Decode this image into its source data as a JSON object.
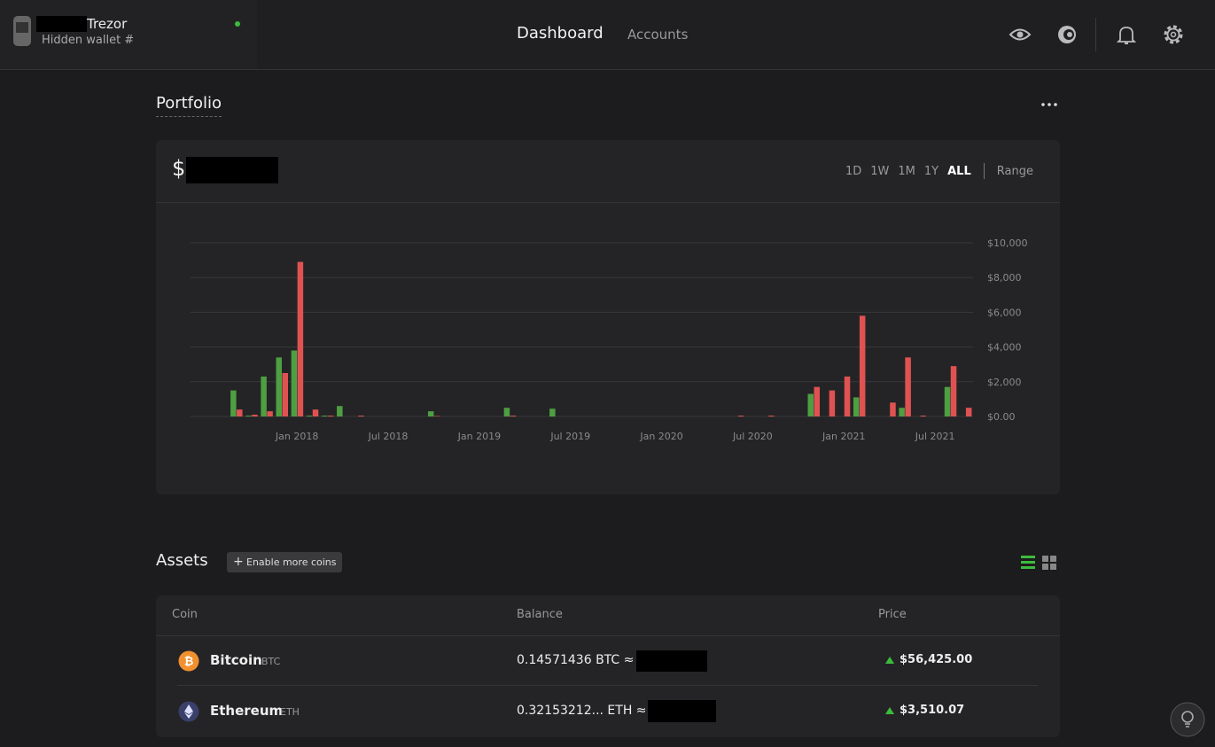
{
  "header": {
    "wallet_name": "Trezor",
    "wallet_type": "Hidden wallet #",
    "nav": [
      "Dashboard",
      "Accounts"
    ]
  },
  "portfolio": {
    "title": "Portfolio",
    "currency_symbol": "$",
    "ranges": [
      "1D",
      "1W",
      "1M",
      "1Y",
      "ALL"
    ],
    "range_custom": "Range"
  },
  "chart_data": {
    "type": "bar",
    "categories": [
      null,
      null,
      null,
      null,
      "Jan 2018",
      null,
      null,
      null,
      null,
      null,
      "Jul 2018",
      null,
      null,
      null,
      null,
      null,
      "Jan 2019",
      null,
      null,
      null,
      null,
      null,
      "Jul 2019",
      null,
      null,
      null,
      null,
      null,
      "Jan 2020",
      null,
      null,
      null,
      null,
      null,
      "Jul 2020",
      null,
      null,
      null,
      null,
      null,
      "Jan 2021",
      null,
      null,
      null,
      null,
      null,
      "Jul 2021",
      null,
      null
    ],
    "series": [
      {
        "color": "#4e9e42",
        "values": [
          1500,
          50,
          2300,
          3400,
          3800,
          50,
          50,
          600,
          0,
          0,
          0,
          0,
          0,
          300,
          0,
          0,
          0,
          0,
          500,
          0,
          0,
          450,
          0,
          0,
          0,
          0,
          0,
          0,
          0,
          0,
          0,
          0,
          0,
          0,
          0,
          0,
          0,
          0,
          1300,
          0,
          0,
          1100,
          0,
          0,
          500,
          0,
          0,
          1700,
          0
        ]
      },
      {
        "color": "#e05252",
        "values": [
          400,
          100,
          300,
          2500,
          8900,
          400,
          50,
          0,
          50,
          0,
          0,
          0,
          0,
          30,
          0,
          0,
          0,
          0,
          50,
          0,
          0,
          0,
          0,
          0,
          0,
          0,
          0,
          0,
          0,
          0,
          0,
          0,
          0,
          50,
          0,
          50,
          0,
          0,
          1700,
          1500,
          2300,
          5800,
          0,
          800,
          3400,
          50,
          0,
          2900,
          500
        ]
      }
    ],
    "ylim": [
      0,
      10000
    ],
    "yticks": [
      {
        "value": 0,
        "label": "$0.00"
      },
      {
        "value": 2000,
        "label": "$2,000"
      },
      {
        "value": 4000,
        "label": "$4,000"
      },
      {
        "value": 6000,
        "label": "$6,000"
      },
      {
        "value": 8000,
        "label": "$8,000"
      },
      {
        "value": 10000,
        "label": "$10,000"
      }
    ],
    "grid": true
  },
  "assets": {
    "title": "Assets",
    "enable_button": "Enable more coins",
    "columns": [
      "Coin",
      "Balance",
      "Price"
    ],
    "rows": [
      {
        "name": "Bitcoin",
        "symbol": "BTC",
        "balance": "0.14571436 BTC ≈",
        "price": "$56,425.00"
      },
      {
        "name": "Ethereum",
        "symbol": "ETH",
        "balance": "0.32153212... ETH ≈",
        "price": "$3,510.07"
      }
    ]
  }
}
